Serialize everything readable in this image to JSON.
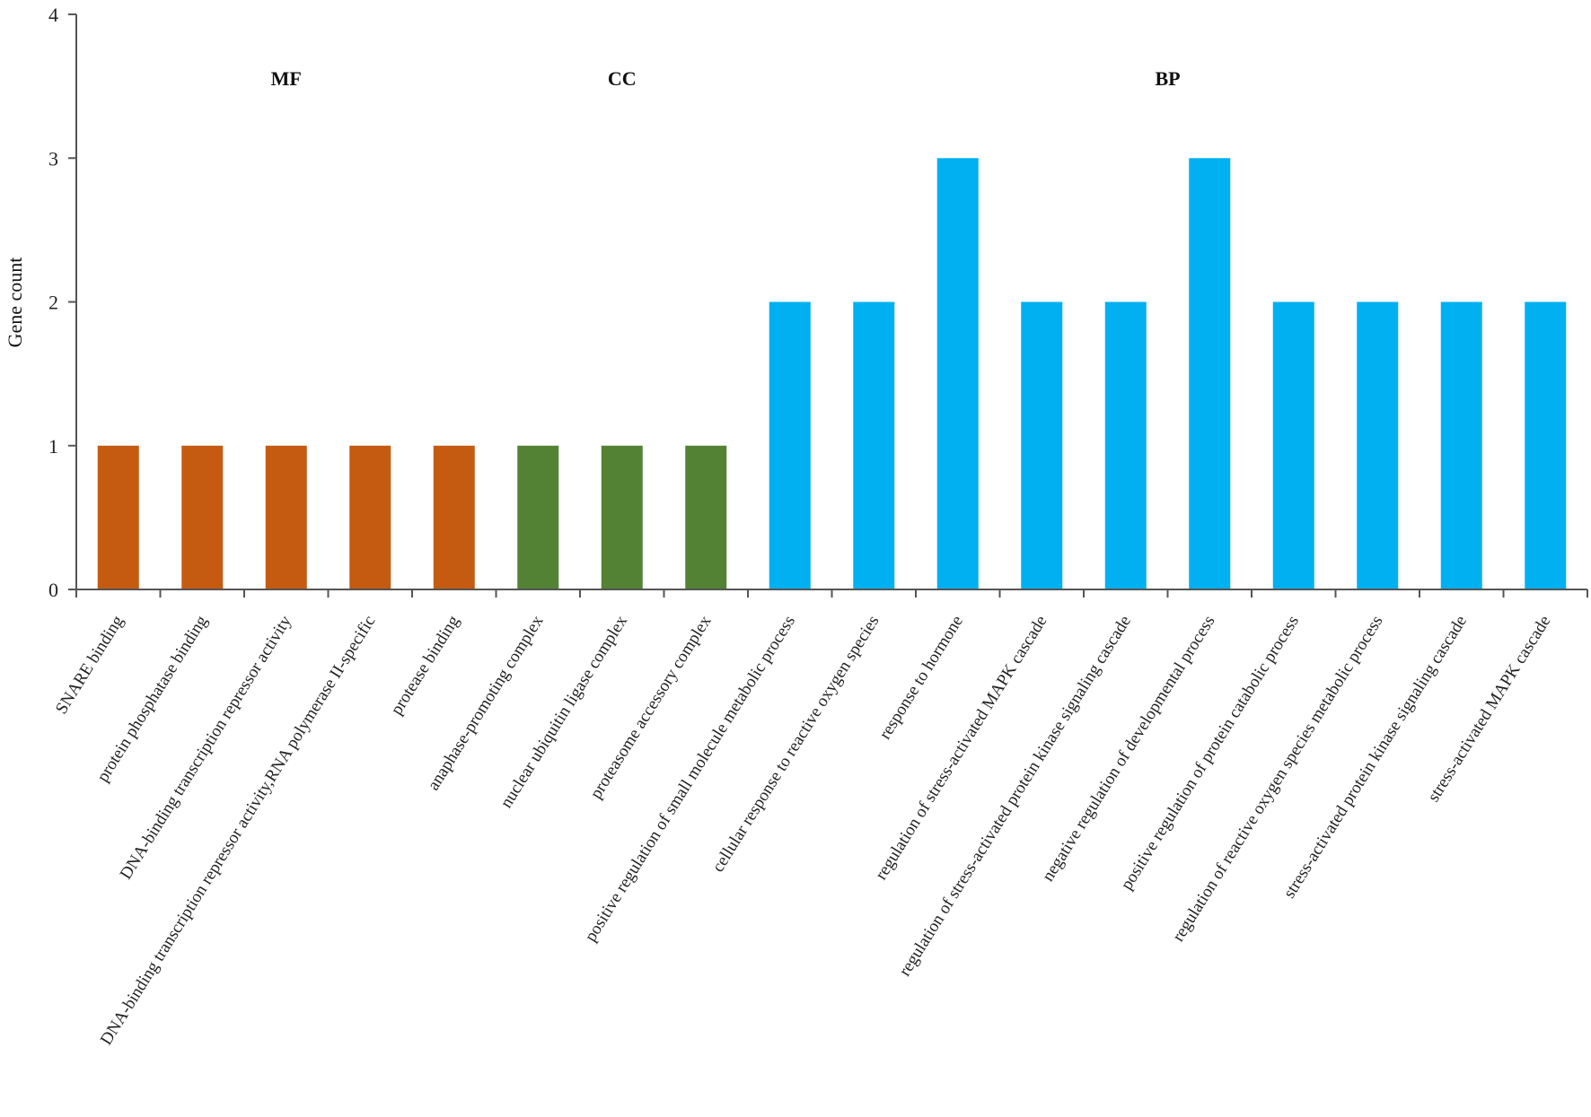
{
  "chart_data": {
    "type": "bar",
    "ylabel": "Gene count",
    "xlabel": "",
    "ylim": [
      0,
      4
    ],
    "yticks": [
      0,
      1,
      2,
      3,
      4
    ],
    "grid": false,
    "group_labels": [
      {
        "label": "MF",
        "color": "#C55A11"
      },
      {
        "label": "CC",
        "color": "#548235"
      },
      {
        "label": "BP",
        "color": "#00B0F0"
      }
    ],
    "categories": [
      "SNARE binding",
      "protein phosphatase binding",
      "DNA-binding transcription repressor activity",
      "DNA-binding transcription repressor activity,RNA polymerase II-specific",
      "protease binding",
      "anaphase-promoting complex",
      "nuclear ubiquitin ligase complex",
      "proteasome accessory complex",
      "positive regulation of small molecule metabolic process",
      "cellular response to reactive oxygen species",
      "response to hormone",
      "regulation of stress-activated MAPK cascade",
      "regulation of stress-activated protein kinase signaling cascade",
      "negative regulation of developmental process",
      "positive regulation of protein catabolic process",
      "regulation of reactive oxygen species  metabolic process",
      "stress-activated protein kinase signaling cascade",
      "stress-activated MAPK cascade"
    ],
    "groups": [
      "MF",
      "MF",
      "MF",
      "MF",
      "MF",
      "CC",
      "CC",
      "CC",
      "BP",
      "BP",
      "BP",
      "BP",
      "BP",
      "BP",
      "BP",
      "BP",
      "BP",
      "BP"
    ],
    "values": [
      1,
      1,
      1,
      1,
      1,
      1,
      1,
      1,
      2,
      2,
      3,
      2,
      2,
      3,
      2,
      2,
      2,
      2
    ]
  }
}
